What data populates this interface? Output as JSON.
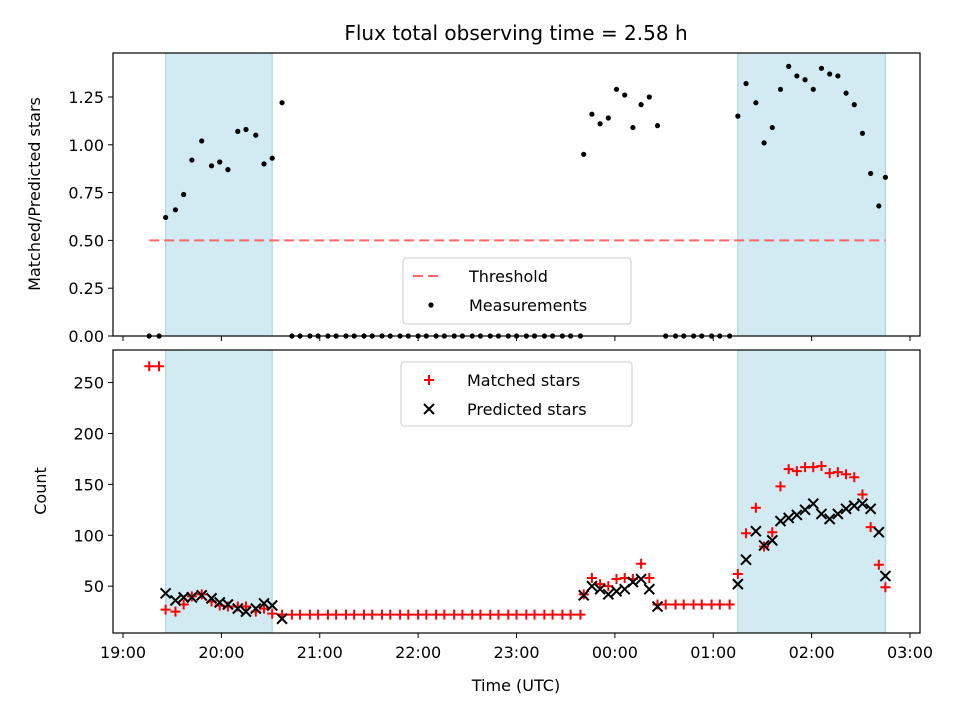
{
  "colors": {
    "shade": "#add8e6",
    "threshold": "#ff6666",
    "matched": "#ff0000",
    "predicted": "#000000",
    "measurement": "#000000"
  },
  "chart_data": [
    {
      "id": "ratio",
      "type": "scatter",
      "title": "Flux total observing time = 2.58 h",
      "ylabel": "Matched/Predicted stars",
      "xlim": [
        "19:00",
        "03:00"
      ],
      "ylim": [
        0,
        1.48
      ],
      "yticks": [
        "0.00",
        "0.25",
        "0.50",
        "0.75",
        "1.00",
        "1.25"
      ],
      "shaded_intervals": [
        [
          "19:26",
          "20:31"
        ],
        [
          "01:15",
          "02:45"
        ]
      ],
      "legend": {
        "position": "bottom-center",
        "entries": [
          "Threshold",
          "Measurements"
        ]
      },
      "series": [
        {
          "name": "Threshold",
          "kind": "dashed-line",
          "x": [
            "19:16",
            "02:45"
          ],
          "y": [
            0.5,
            0.5
          ]
        },
        {
          "name": "Measurements",
          "kind": "points",
          "x": [
            "19:16",
            "19:22",
            "19:26",
            "19:32",
            "19:37",
            "19:42",
            "19:48",
            "19:54",
            "19:59",
            "20:04",
            "20:10",
            "20:15",
            "20:21",
            "20:26",
            "20:31",
            "20:37",
            "20:43",
            "20:48",
            "20:54",
            "20:59",
            "21:05",
            "21:10",
            "21:16",
            "21:21",
            "21:27",
            "21:32",
            "21:38",
            "21:43",
            "21:49",
            "21:54",
            "22:00",
            "22:05",
            "22:11",
            "22:16",
            "22:22",
            "22:27",
            "22:33",
            "22:38",
            "22:44",
            "22:49",
            "22:55",
            "23:00",
            "23:06",
            "23:11",
            "23:17",
            "23:22",
            "23:28",
            "23:33",
            "23:39",
            "23:41",
            "23:46",
            "23:51",
            "23:56",
            "00:01",
            "00:06",
            "00:11",
            "00:16",
            "00:21",
            "00:26",
            "00:31",
            "00:37",
            "00:42",
            "00:48",
            "00:53",
            "00:59",
            "01:04",
            "01:10",
            "01:15",
            "01:20",
            "01:26",
            "01:31",
            "01:36",
            "01:41",
            "01:46",
            "01:51",
            "01:56",
            "02:01",
            "02:06",
            "02:11",
            "02:16",
            "02:21",
            "02:26",
            "02:31",
            "02:36",
            "02:41",
            "02:45"
          ],
          "y": [
            0,
            0,
            0.62,
            0.66,
            0.74,
            0.92,
            1.02,
            0.89,
            0.91,
            0.87,
            1.07,
            1.08,
            1.05,
            0.9,
            0.93,
            1.22,
            0,
            0,
            0,
            0,
            0,
            0,
            0,
            0,
            0,
            0,
            0,
            0,
            0,
            0,
            0,
            0,
            0,
            0,
            0,
            0,
            0,
            0,
            0,
            0,
            0,
            0,
            0,
            0,
            0,
            0,
            0,
            0,
            0,
            0.95,
            1.16,
            1.11,
            1.14,
            1.29,
            1.26,
            1.09,
            1.21,
            1.25,
            1.1,
            0,
            0,
            0,
            0,
            0,
            0,
            0,
            0,
            1.15,
            1.32,
            1.22,
            1.01,
            1.09,
            1.29,
            1.41,
            1.36,
            1.34,
            1.29,
            1.4,
            1.37,
            1.36,
            1.27,
            1.21,
            1.06,
            0.85,
            0.68,
            0.83
          ]
        }
      ]
    },
    {
      "id": "counts",
      "type": "scatter",
      "xlabel": "Time (UTC)",
      "ylabel": "Count",
      "xlim": [
        "19:00",
        "03:00"
      ],
      "ylim": [
        4,
        282
      ],
      "xticks": [
        "19:00",
        "20:00",
        "21:00",
        "22:00",
        "23:00",
        "00:00",
        "01:00",
        "02:00",
        "03:00"
      ],
      "yticks": [
        "50",
        "100",
        "150",
        "200",
        "250"
      ],
      "shaded_intervals": [
        [
          "19:26",
          "20:31"
        ],
        [
          "01:15",
          "02:45"
        ]
      ],
      "legend": {
        "position": "top-center",
        "entries": [
          "Matched stars",
          "Predicted stars"
        ]
      },
      "series": [
        {
          "name": "Matched stars",
          "kind": "plus",
          "x": [
            "19:16",
            "19:22",
            "19:26",
            "19:32",
            "19:37",
            "19:42",
            "19:48",
            "19:54",
            "19:59",
            "20:04",
            "20:10",
            "20:15",
            "20:21",
            "20:26",
            "20:31",
            "20:37",
            "20:43",
            "20:48",
            "20:54",
            "20:59",
            "21:05",
            "21:10",
            "21:16",
            "21:21",
            "21:27",
            "21:32",
            "21:38",
            "21:43",
            "21:49",
            "21:54",
            "22:00",
            "22:05",
            "22:11",
            "22:16",
            "22:22",
            "22:27",
            "22:33",
            "22:38",
            "22:44",
            "22:49",
            "22:55",
            "23:00",
            "23:06",
            "23:11",
            "23:17",
            "23:22",
            "23:28",
            "23:33",
            "23:39",
            "23:41",
            "23:46",
            "23:51",
            "23:56",
            "00:01",
            "00:06",
            "00:11",
            "00:16",
            "00:21",
            "00:26",
            "00:31",
            "00:37",
            "00:42",
            "00:48",
            "00:53",
            "00:59",
            "01:04",
            "01:10",
            "01:15",
            "01:20",
            "01:26",
            "01:31",
            "01:36",
            "01:41",
            "01:46",
            "01:51",
            "01:56",
            "02:01",
            "02:06",
            "02:11",
            "02:16",
            "02:21",
            "02:26",
            "02:31",
            "02:36",
            "02:41",
            "02:45"
          ],
          "y": [
            266,
            266,
            27,
            25,
            32,
            40,
            42,
            35,
            31,
            30,
            30,
            30,
            25,
            28,
            23,
            22,
            22,
            22,
            22,
            22,
            22,
            22,
            22,
            22,
            22,
            22,
            22,
            22,
            22,
            22,
            22,
            22,
            22,
            22,
            22,
            22,
            22,
            22,
            22,
            22,
            22,
            22,
            22,
            22,
            22,
            22,
            22,
            22,
            22,
            42,
            58,
            52,
            50,
            57,
            58,
            57,
            72,
            58,
            32,
            32,
            32,
            32,
            32,
            32,
            32,
            32,
            32,
            62,
            102,
            127,
            89,
            103,
            148,
            165,
            163,
            167,
            167,
            168,
            161,
            162,
            160,
            157,
            140,
            108,
            71,
            49
          ]
        },
        {
          "name": "Predicted stars",
          "kind": "x",
          "x": [
            "19:26",
            "19:32",
            "19:37",
            "19:42",
            "19:48",
            "19:54",
            "19:59",
            "20:04",
            "20:10",
            "20:15",
            "20:21",
            "20:26",
            "20:31",
            "20:37",
            "23:41",
            "23:46",
            "23:51",
            "23:56",
            "00:01",
            "00:06",
            "00:11",
            "00:16",
            "00:21",
            "00:26",
            "01:15",
            "01:20",
            "01:26",
            "01:31",
            "01:36",
            "01:41",
            "01:46",
            "01:51",
            "01:56",
            "02:01",
            "02:06",
            "02:11",
            "02:16",
            "02:21",
            "02:26",
            "02:31",
            "02:36",
            "02:41",
            "02:45"
          ],
          "y": [
            43,
            36,
            39,
            39,
            41,
            38,
            34,
            32,
            28,
            25,
            28,
            33,
            31,
            18,
            41,
            50,
            47,
            42,
            45,
            47,
            54,
            57,
            47,
            30,
            52,
            76,
            104,
            90,
            95,
            114,
            117,
            120,
            125,
            131,
            121,
            116,
            121,
            126,
            129,
            131,
            126,
            103,
            60
          ]
        }
      ]
    }
  ]
}
